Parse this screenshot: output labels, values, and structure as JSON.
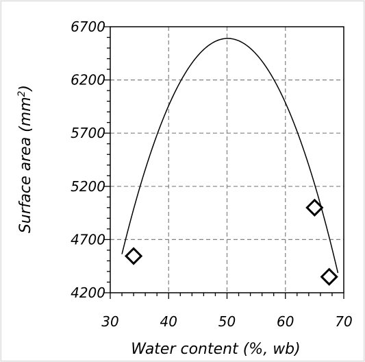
{
  "chart_data": {
    "type": "scatter",
    "xlabel": "Water content (%, wb)",
    "ylabel_main": "Surface area (mm",
    "ylabel_sup": "2",
    "ylabel_close": ")",
    "xlim": [
      30,
      70
    ],
    "ylim": [
      4200,
      6700
    ],
    "xticks": [
      "30",
      "40",
      "50",
      "60",
      "70"
    ],
    "yticks": [
      "4200",
      "4700",
      "5200",
      "5700",
      "6200",
      "6700"
    ],
    "grid": true,
    "points": [
      {
        "x": 34.0,
        "y": 4545
      },
      {
        "x": 65.0,
        "y": 5000
      },
      {
        "x": 67.5,
        "y": 4350
      }
    ],
    "fit_curve": {
      "type": "polynomial",
      "degree": 2,
      "coefficients": [
        -6.18,
        619.4,
        -8930
      ]
    }
  }
}
